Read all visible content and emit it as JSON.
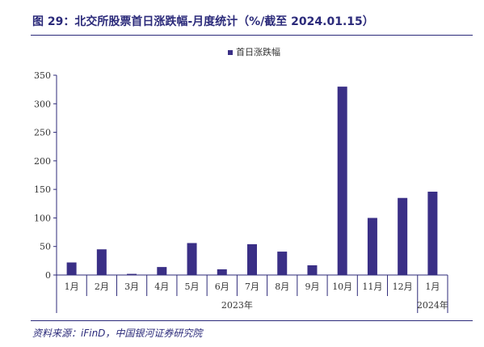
{
  "figure": {
    "title": "图 29：北交所股票首日涨跌幅-月度统计（%/截至 2024.01.15）",
    "source": "资料来源：iFinD，中国银河证券研究院"
  },
  "chart_data": {
    "type": "bar",
    "categories": [
      "1月",
      "2月",
      "3月",
      "4月",
      "5月",
      "6月",
      "7月",
      "8月",
      "9月",
      "10月",
      "11月",
      "12月",
      "1月"
    ],
    "year_groups": [
      {
        "label": "2023年",
        "span": 12
      },
      {
        "label": "2024年",
        "span": 1
      }
    ],
    "series": [
      {
        "name": "首日涨跌幅",
        "values": [
          22,
          45,
          2,
          14,
          56,
          10,
          54,
          41,
          17,
          330,
          100,
          135,
          146
        ]
      }
    ],
    "yticks": [
      "0",
      "50",
      "100",
      "150",
      "200",
      "250",
      "300",
      "350"
    ],
    "ylim": [
      0,
      350
    ],
    "legend_position": "top-center",
    "grid": false,
    "color": "#3a2f86"
  }
}
